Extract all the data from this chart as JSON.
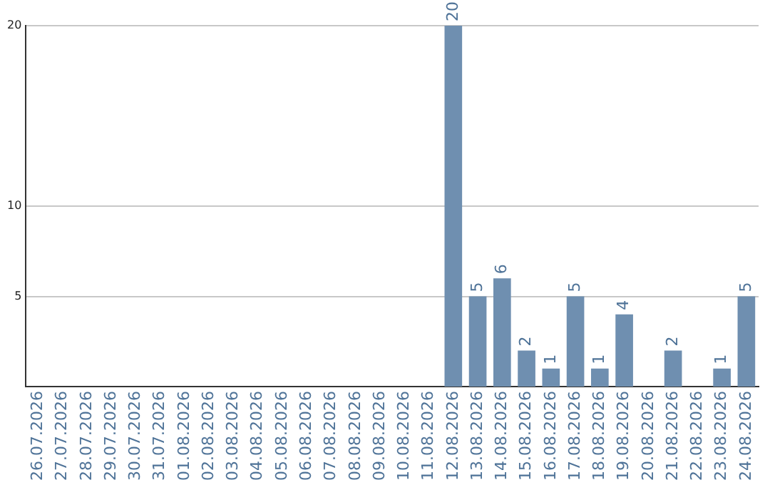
{
  "chart_data": {
    "type": "bar",
    "categories": [
      "26.07.2026",
      "27.07.2026",
      "28.07.2026",
      "29.07.2026",
      "30.07.2026",
      "31.07.2026",
      "01.08.2026",
      "02.08.2026",
      "03.08.2026",
      "04.08.2026",
      "05.08.2026",
      "06.08.2026",
      "07.08.2026",
      "08.08.2026",
      "09.08.2026",
      "10.08.2026",
      "11.08.2026",
      "12.08.2026",
      "13.08.2026",
      "14.08.2026",
      "15.08.2026",
      "16.08.2026",
      "17.08.2026",
      "18.08.2026",
      "19.08.2026",
      "20.08.2026",
      "21.08.2026",
      "22.08.2026",
      "23.08.2026",
      "24.08.2026"
    ],
    "values": [
      null,
      null,
      null,
      null,
      null,
      null,
      null,
      null,
      null,
      null,
      null,
      null,
      null,
      null,
      null,
      null,
      null,
      20,
      5,
      6,
      2,
      1,
      5,
      1,
      4,
      null,
      2,
      null,
      1,
      5
    ],
    "color": "#6f8fb0",
    "ylim": [
      0,
      20
    ],
    "yticks": [
      5,
      10,
      20
    ],
    "grid": "y",
    "data_labels": true,
    "legend": false
  }
}
